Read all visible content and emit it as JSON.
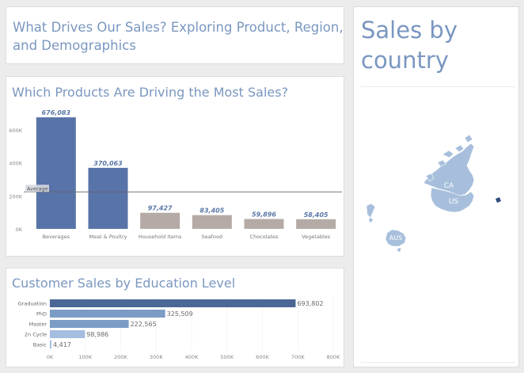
{
  "header": {
    "title": "What Drives Our Sales? Exploring Product, Region, and Demographics"
  },
  "colors": {
    "accent_title": "#7a97c0",
    "bar_highlight": "#5873a8",
    "bar_muted": "#b4aba6",
    "bar_edu_dark": "#4a6796",
    "bar_edu_mid": "#7c9cc6",
    "bar_edu_light": "#a4bee0",
    "map_fill": "#a7bfdc",
    "map_dark": "#2f4d80"
  },
  "map": {
    "title": "Sales by country",
    "labels": [
      "CA",
      "US",
      "AUS"
    ]
  },
  "chart_data": [
    {
      "type": "bar",
      "title": "Which Products Are Driving the Most Sales?",
      "categories": [
        "Beverages",
        "Meat & Poultry",
        "Household Items",
        "Seafood",
        "Chocolates",
        "Vegetables"
      ],
      "values": [
        676083,
        370063,
        97427,
        83405,
        59896,
        58405
      ],
      "value_labels": [
        "676,083",
        "370,063",
        "97,427",
        "83,405",
        "59,896",
        "58,405"
      ],
      "highlighted": [
        true,
        true,
        false,
        false,
        false,
        false
      ],
      "ylim": [
        0,
        720000
      ],
      "yticks": [
        0,
        200000,
        400000,
        600000
      ],
      "ytick_labels": [
        "0K",
        "200K",
        "400K",
        "600K"
      ],
      "reference_line": {
        "label": "Average",
        "value": 224213
      },
      "xlabel": "",
      "ylabel": ""
    },
    {
      "type": "bar",
      "orientation": "horizontal",
      "title": "Customer Sales by Education Level",
      "categories": [
        "Graduation",
        "PhD",
        "Master",
        "2n Cycle",
        "Basic"
      ],
      "values": [
        693802,
        325509,
        222565,
        98986,
        4417
      ],
      "value_labels": [
        "693,802",
        "325,509",
        "222,565",
        "98,986",
        "4,417"
      ],
      "xlim": [
        0,
        800000
      ],
      "xticks": [
        0,
        100000,
        200000,
        300000,
        400000,
        500000,
        600000,
        700000,
        800000
      ],
      "xtick_labels": [
        "0K",
        "100K",
        "200K",
        "300K",
        "400K",
        "500K",
        "600K",
        "700K",
        "800K"
      ],
      "xlabel": "",
      "ylabel": ""
    }
  ]
}
